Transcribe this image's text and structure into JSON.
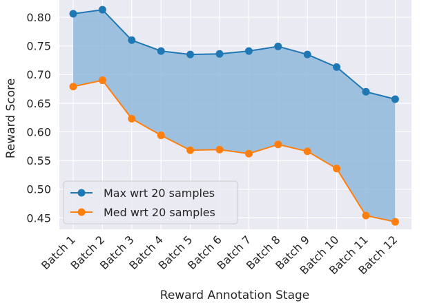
{
  "chart_data": {
    "type": "line",
    "xlabel": "Reward Annotation Stage",
    "ylabel": "Reward Score",
    "categories": [
      "Batch 1",
      "Batch 2",
      "Batch 3",
      "Batch 4",
      "Batch 5",
      "Batch 6",
      "Batch 7",
      "Batch 8",
      "Batch 9",
      "Batch 10",
      "Batch 11",
      "Batch 12"
    ],
    "yticks": [
      "0.45",
      "0.50",
      "0.55",
      "0.60",
      "0.65",
      "0.70",
      "0.75",
      "0.80"
    ],
    "ylim": [
      0.43,
      0.83
    ],
    "grid": true,
    "legend_position": "lower-left",
    "fill_between_series": true,
    "colors": {
      "background": "#eaeaf2",
      "grid": "#ffffff",
      "fill": "#8fb8dc"
    },
    "series": [
      {
        "name": "Max wrt 20 samples",
        "color": "#1f77b4",
        "values": [
          0.806,
          0.813,
          0.76,
          0.741,
          0.735,
          0.736,
          0.741,
          0.749,
          0.735,
          0.713,
          0.67,
          0.657
        ]
      },
      {
        "name": "Med wrt 20 samples",
        "color": "#ff7f0e",
        "values": [
          0.679,
          0.69,
          0.623,
          0.594,
          0.568,
          0.569,
          0.562,
          0.578,
          0.566,
          0.536,
          0.454,
          0.443
        ]
      }
    ]
  }
}
